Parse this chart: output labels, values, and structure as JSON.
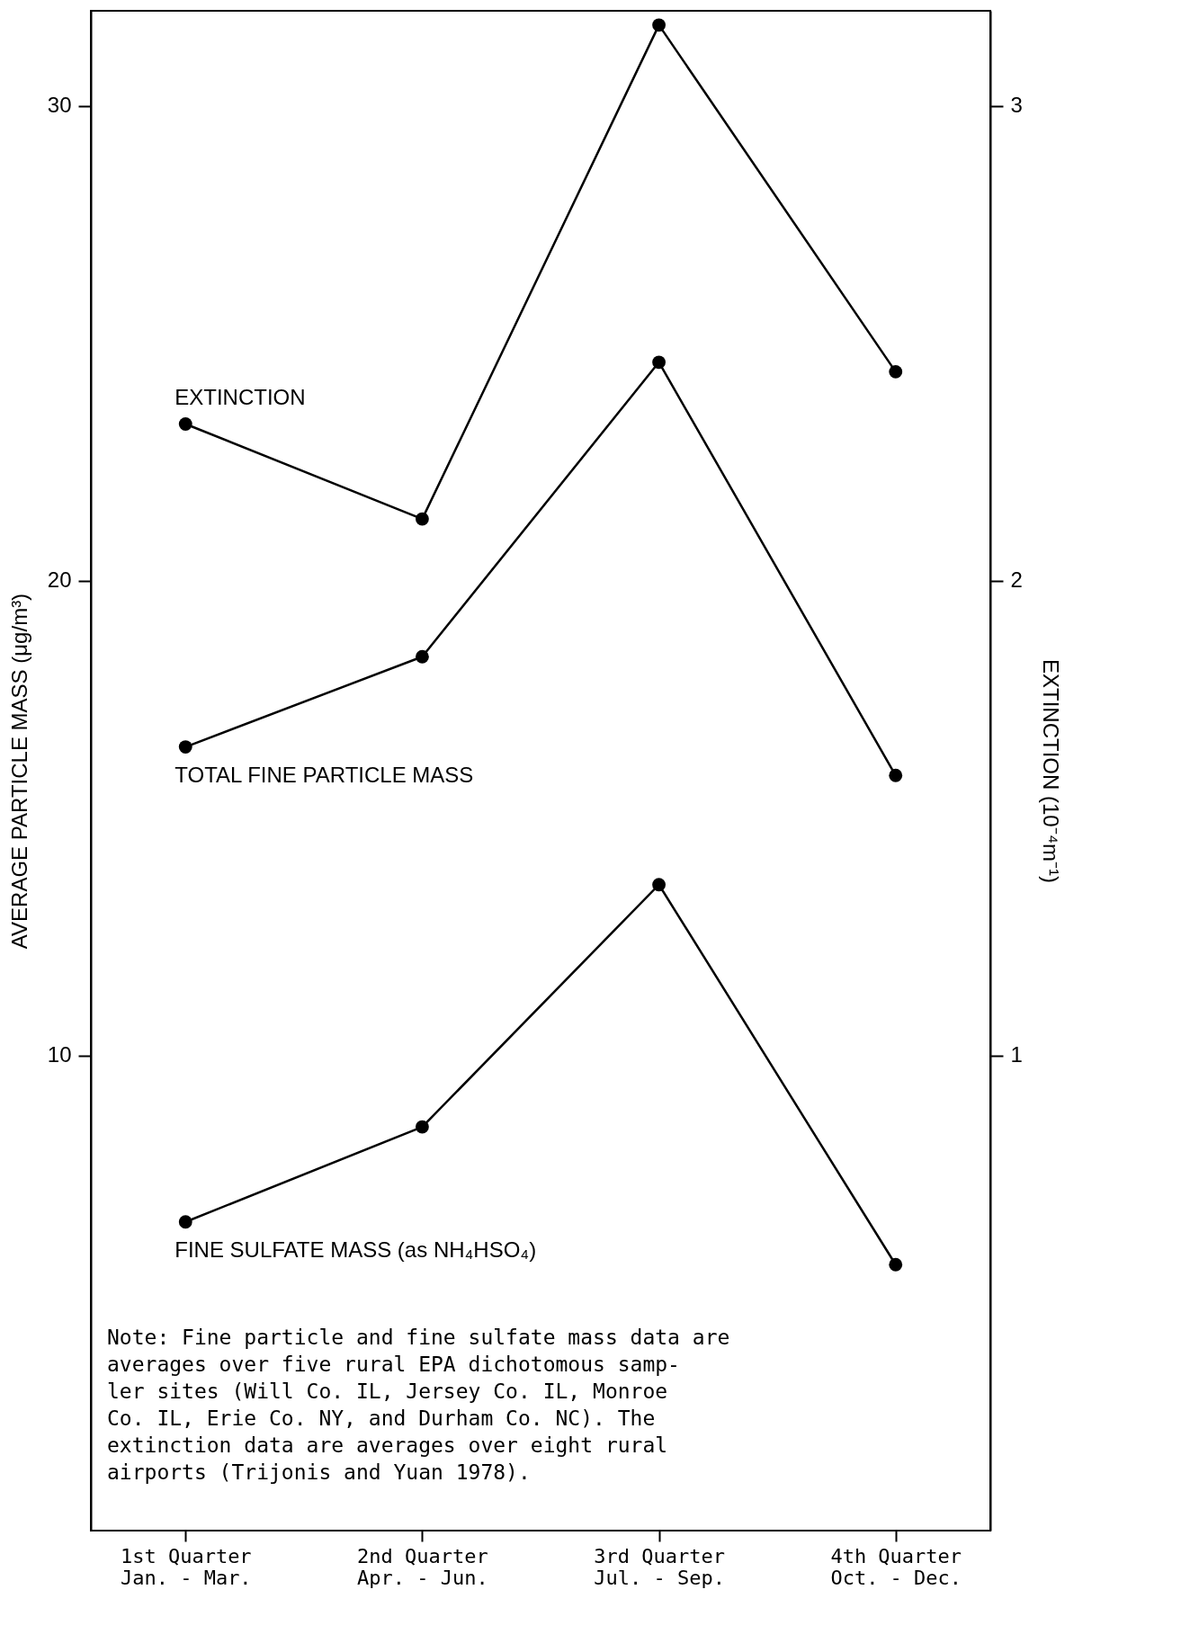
{
  "chart_data": {
    "type": "line",
    "categories": [
      "1st Quarter\nJan. - Mar.",
      "2nd Quarter\nApr. - Jun.",
      "3rd Quarter\nJul. - Sep.",
      "4th Quarter\nOct. - Dec."
    ],
    "ylabel": "AVERAGE PARTICLE MASS (μg/m³)",
    "y2label": "EXTINCTION (10⁻⁴m⁻¹)",
    "series": [
      {
        "name": "EXTINCTION",
        "color": "#000000",
        "axis": "y2",
        "values": [
          2.33,
          2.13,
          3.17,
          2.44
        ]
      },
      {
        "name": "TOTAL FINE PARTICLE MASS",
        "color": "#000000",
        "values": [
          16.5,
          18.4,
          24.6,
          15.9
        ]
      },
      {
        "name": "FINE SULFATE MASS (as NH₄HSO₄)",
        "color": "#000000",
        "values": [
          6.5,
          8.5,
          13.6,
          5.6
        ]
      }
    ],
    "ylim": [
      0,
      32
    ],
    "yticks": [
      10,
      20,
      30
    ],
    "y2lim": [
      0,
      3.2
    ],
    "y2ticks": [
      1,
      2,
      3
    ],
    "marker": "circle",
    "line_style": "solid",
    "grid": false,
    "annotations": [
      "Note: Fine particle and fine sulfate mass data are\naverages over five rural EPA dichotomous samp-\nler sites (Will Co. IL, Jersey Co. IL, Monroe\nCo. IL, Erie Co. NY, and Durham Co. NC).  The\nextinction data are averages over eight rural\nairports (Trijonis and Yuan 1978)."
    ]
  }
}
